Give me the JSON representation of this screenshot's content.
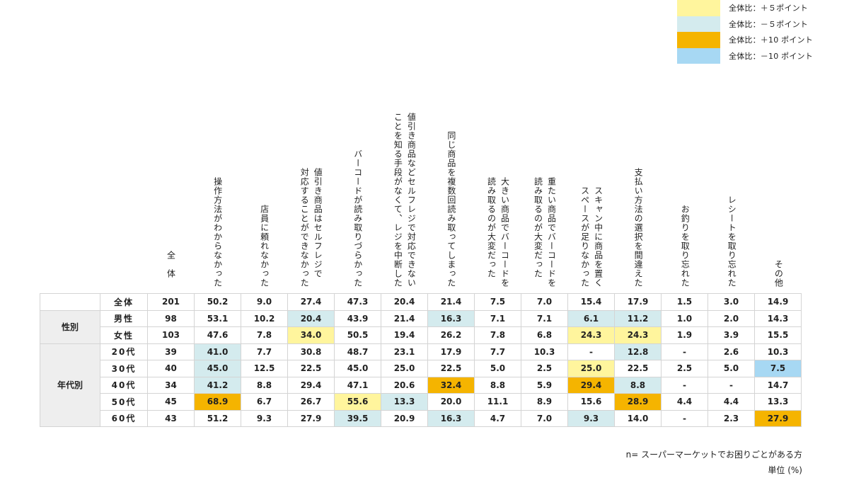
{
  "legend": [
    {
      "label": "全体比：＋５ポイント",
      "color": "#FFF59D",
      "key": "y5"
    },
    {
      "label": "全体比：－５ポイント",
      "color": "#D4EBEE",
      "key": "b5"
    },
    {
      "label": "全体比：＋10 ポイント",
      "color": "#F5B400",
      "key": "y10"
    },
    {
      "label": "全体比：－10 ポイント",
      "color": "#A7D8F3",
      "key": "b10"
    }
  ],
  "columns": [
    "全体",
    "操作方法がわからなかった",
    "店員に頼れなかった",
    "値引き商品はセルフレジで\n対応することができなかった",
    "バーコードが読み取りづらかった",
    "値引き商品などセルフレジで対応できない\nことを知る手段がなくて、レジを中断した",
    "同じ商品を複数回読み取ってしまった",
    "大きい商品でバーコードを\n読み取るのが大変だった",
    "重たい商品でバーコードを\n読み取るのが大変だった",
    "スキャン中に商品を置く\nスペースが足りなかった",
    "支払い方法の選択を間違えた",
    "お釣りを取り忘れた",
    "レシートを取り忘れた",
    "その他"
  ],
  "groups": {
    "gender": "性別",
    "age": "年代別"
  },
  "rows": [
    {
      "label": "全体",
      "values": [
        "201",
        "50.2",
        "9.0",
        "27.4",
        "47.3",
        "20.4",
        "21.4",
        "7.5",
        "7.0",
        "15.4",
        "17.9",
        "1.5",
        "3.0",
        "14.9"
      ],
      "highlights": [
        "",
        "",
        "",
        "",
        "",
        "",
        "",
        "",
        "",
        "",
        "",
        "",
        "",
        ""
      ]
    },
    {
      "label": "男性",
      "values": [
        "98",
        "53.1",
        "10.2",
        "20.4",
        "43.9",
        "21.4",
        "16.3",
        "7.1",
        "7.1",
        "6.1",
        "11.2",
        "1.0",
        "2.0",
        "14.3"
      ],
      "highlights": [
        "",
        "",
        "",
        "b5",
        "",
        "",
        "b5",
        "",
        "",
        "b5",
        "b5",
        "",
        "",
        ""
      ]
    },
    {
      "label": "女性",
      "values": [
        "103",
        "47.6",
        "7.8",
        "34.0",
        "50.5",
        "19.4",
        "26.2",
        "7.8",
        "6.8",
        "24.3",
        "24.3",
        "1.9",
        "3.9",
        "15.5"
      ],
      "highlights": [
        "",
        "",
        "",
        "y5",
        "",
        "",
        "",
        "",
        "",
        "y5",
        "y5",
        "",
        "",
        ""
      ]
    },
    {
      "label": "20代",
      "values": [
        "39",
        "41.0",
        "7.7",
        "30.8",
        "48.7",
        "23.1",
        "17.9",
        "7.7",
        "10.3",
        "-",
        "12.8",
        "-",
        "2.6",
        "10.3"
      ],
      "highlights": [
        "",
        "b5",
        "",
        "",
        "",
        "",
        "",
        "",
        "",
        "",
        "b5",
        "",
        "",
        ""
      ]
    },
    {
      "label": "30代",
      "values": [
        "40",
        "45.0",
        "12.5",
        "22.5",
        "45.0",
        "25.0",
        "22.5",
        "5.0",
        "2.5",
        "25.0",
        "22.5",
        "2.5",
        "5.0",
        "7.5"
      ],
      "highlights": [
        "",
        "b5",
        "",
        "",
        "",
        "",
        "",
        "",
        "",
        "y5",
        "",
        "",
        "",
        "b10"
      ]
    },
    {
      "label": "40代",
      "values": [
        "34",
        "41.2",
        "8.8",
        "29.4",
        "47.1",
        "20.6",
        "32.4",
        "8.8",
        "5.9",
        "29.4",
        "8.8",
        "-",
        "-",
        "14.7"
      ],
      "highlights": [
        "",
        "b5",
        "",
        "",
        "",
        "",
        "y10",
        "",
        "",
        "y10",
        "b5",
        "",
        "",
        ""
      ]
    },
    {
      "label": "50代",
      "values": [
        "45",
        "68.9",
        "6.7",
        "26.7",
        "55.6",
        "13.3",
        "20.0",
        "11.1",
        "8.9",
        "15.6",
        "28.9",
        "4.4",
        "4.4",
        "13.3"
      ],
      "highlights": [
        "",
        "y10",
        "",
        "",
        "y5",
        "b5",
        "",
        "",
        "",
        "",
        "y10",
        "",
        "",
        ""
      ]
    },
    {
      "label": "60代",
      "values": [
        "43",
        "51.2",
        "9.3",
        "27.9",
        "39.5",
        "20.9",
        "16.3",
        "4.7",
        "7.0",
        "9.3",
        "14.0",
        "-",
        "2.3",
        "27.9"
      ],
      "highlights": [
        "",
        "",
        "",
        "",
        "b5",
        "",
        "b5",
        "",
        "",
        "b5",
        "",
        "",
        "",
        "y10"
      ]
    }
  ],
  "notes": {
    "sample": "n= スーパーマーケットでお困りごとがある方",
    "unit": "単位 (%)"
  }
}
